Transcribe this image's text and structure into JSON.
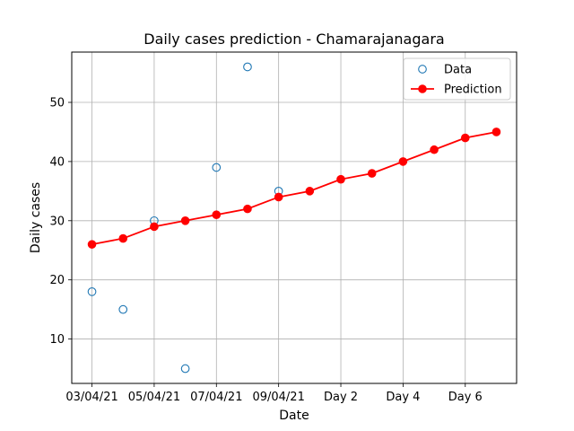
{
  "chart_data": {
    "type": "line",
    "title": "Daily cases prediction - Chamarajanagara",
    "xlabel": "Date",
    "ylabel": "Daily cases",
    "x_positions": [
      0,
      1,
      2,
      3,
      4,
      5,
      6,
      7,
      8,
      9,
      10,
      11,
      12,
      13
    ],
    "xticks": [
      {
        "pos": 0,
        "label": "03/04/21"
      },
      {
        "pos": 2,
        "label": "05/04/21"
      },
      {
        "pos": 4,
        "label": "07/04/21"
      },
      {
        "pos": 6,
        "label": "09/04/21"
      },
      {
        "pos": 8,
        "label": "Day 2"
      },
      {
        "pos": 10,
        "label": "Day 4"
      },
      {
        "pos": 12,
        "label": "Day 6"
      }
    ],
    "yticks": [
      10,
      20,
      30,
      40,
      50
    ],
    "xlim": [
      -0.65,
      13.65
    ],
    "ylim": [
      2.5,
      58.5
    ],
    "grid": true,
    "legend_position": "top-right",
    "series": [
      {
        "name": "Data",
        "style": "markers-hollow",
        "color": "#1f77b4",
        "x": [
          0,
          1,
          2,
          3,
          4,
          5,
          6
        ],
        "values": [
          18,
          15,
          30,
          5,
          39,
          56,
          35
        ]
      },
      {
        "name": "Prediction",
        "style": "line-markers",
        "color": "#ff0000",
        "x": [
          0,
          1,
          2,
          3,
          4,
          5,
          6,
          7,
          8,
          9,
          10,
          11,
          12,
          13
        ],
        "values": [
          26,
          27,
          29,
          30,
          31,
          32,
          34,
          35,
          37,
          38,
          40,
          42,
          44,
          45
        ]
      }
    ]
  }
}
